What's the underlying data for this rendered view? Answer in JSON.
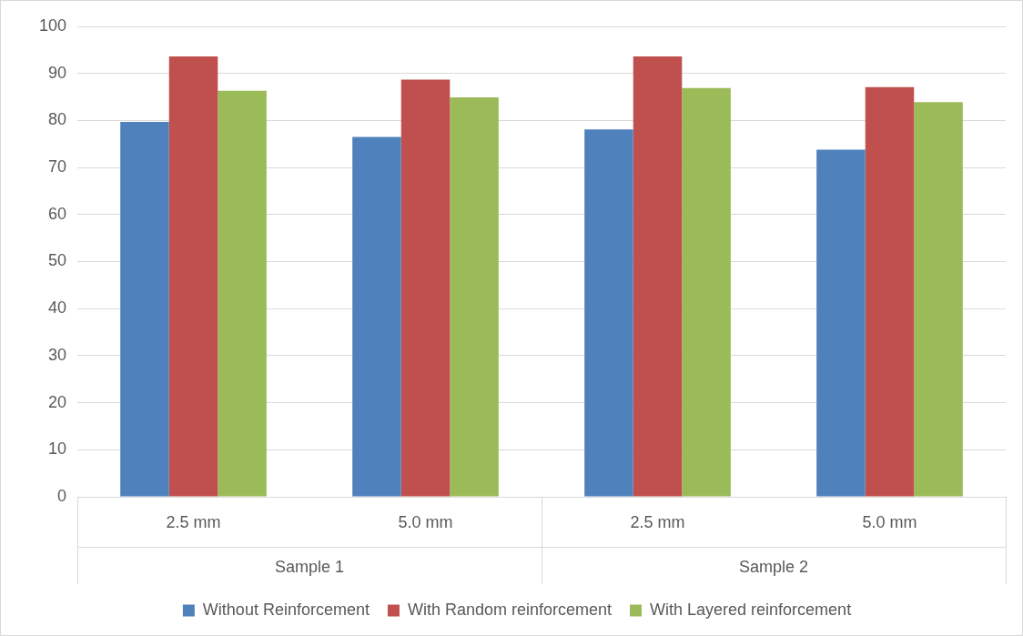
{
  "chart_data": {
    "type": "bar",
    "categories": [
      "2.5 mm",
      "5.0 mm",
      "2.5 mm",
      "5.0 mm"
    ],
    "series": [
      {
        "name": "Without Reinforcement",
        "color": "#4f81bd",
        "values": [
          79.7,
          76.5,
          78.1,
          73.8
        ]
      },
      {
        "name": "With Random reinforcement",
        "color": "#c0504d",
        "values": [
          93.6,
          88.7,
          93.6,
          87.1
        ]
      },
      {
        "name": "With Layered reinforcement",
        "color": "#9bbb59",
        "values": [
          86.3,
          84.9,
          86.9,
          83.9
        ]
      }
    ],
    "annotations": [
      "Sample 1",
      "Sample 2"
    ],
    "ylim": [
      0,
      100
    ],
    "yticks": [
      0,
      10,
      20,
      30,
      40,
      50,
      60,
      70,
      80,
      90,
      100
    ],
    "grid": "y",
    "legend": "bottom"
  }
}
